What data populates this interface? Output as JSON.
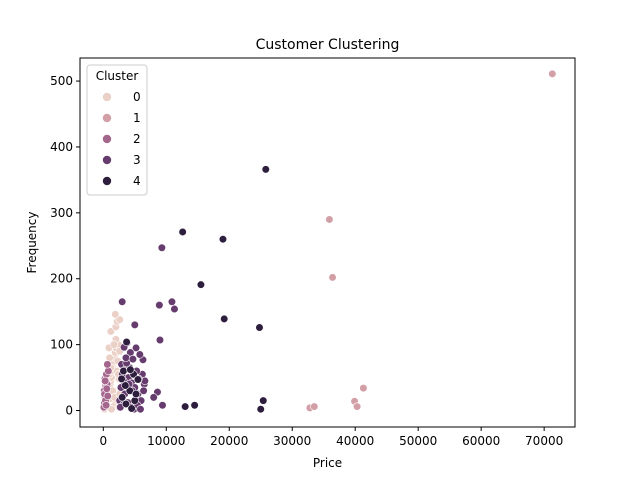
{
  "chart_data": {
    "type": "scatter",
    "title": "Customer Clustering",
    "xlabel": "Price",
    "ylabel": "Frequency",
    "xlim": [
      -3700,
      74900
    ],
    "ylim": [
      -25,
      535
    ],
    "xticks": [
      0,
      10000,
      20000,
      30000,
      40000,
      50000,
      60000,
      70000
    ],
    "yticks": [
      0,
      100,
      200,
      300,
      400,
      500
    ],
    "legend": {
      "title": "Cluster",
      "placement": "top-left"
    },
    "series": [
      {
        "name": "0",
        "color": "#ebd0c7",
        "points": [
          [
            200,
            2
          ],
          [
            300,
            5
          ],
          [
            150,
            8
          ],
          [
            400,
            12
          ],
          [
            600,
            15
          ],
          [
            800,
            20
          ],
          [
            500,
            25
          ],
          [
            900,
            30
          ],
          [
            700,
            35
          ],
          [
            1100,
            40
          ],
          [
            1200,
            45
          ],
          [
            1300,
            50
          ],
          [
            1000,
            55
          ],
          [
            1500,
            60
          ],
          [
            1600,
            65
          ],
          [
            1400,
            70
          ],
          [
            1700,
            75
          ],
          [
            1800,
            80
          ],
          [
            1900,
            88
          ],
          [
            2000,
            95
          ],
          [
            900,
            95
          ],
          [
            1200,
            120
          ],
          [
            2000,
            127
          ],
          [
            2200,
            135
          ],
          [
            2600,
            138
          ],
          [
            1900,
            146
          ],
          [
            2400,
            100
          ],
          [
            2600,
            90
          ],
          [
            2300,
            75
          ],
          [
            2100,
            60
          ],
          [
            2500,
            48
          ],
          [
            2700,
            35
          ],
          [
            2200,
            22
          ],
          [
            1900,
            12
          ],
          [
            1600,
            6
          ],
          [
            1300,
            2
          ],
          [
            1100,
            18
          ],
          [
            800,
            28
          ],
          [
            600,
            42
          ],
          [
            300,
            10
          ],
          [
            1500,
            30
          ],
          [
            1800,
            20
          ],
          [
            2600,
            25
          ],
          [
            2800,
            15
          ],
          [
            2500,
            5
          ],
          [
            1200,
            65
          ],
          [
            1000,
            80
          ],
          [
            2000,
            108
          ],
          [
            1700,
            100
          ],
          [
            2400,
            55
          ]
        ]
      },
      {
        "name": "1",
        "color": "#d29fa7",
        "points": [
          [
            71300,
            511
          ],
          [
            35900,
            290
          ],
          [
            36400,
            202
          ],
          [
            41300,
            34
          ],
          [
            39900,
            14
          ],
          [
            40300,
            6
          ],
          [
            32800,
            4
          ],
          [
            33500,
            6
          ]
        ]
      },
      {
        "name": "2",
        "color": "#a5668e",
        "points": [
          [
            100,
            5
          ],
          [
            200,
            12
          ],
          [
            300,
            20
          ],
          [
            150,
            30
          ],
          [
            400,
            38
          ],
          [
            250,
            48
          ],
          [
            500,
            55
          ],
          [
            600,
            40
          ],
          [
            200,
            25
          ],
          [
            350,
            15
          ],
          [
            450,
            8
          ],
          [
            700,
            22
          ],
          [
            550,
            33
          ],
          [
            300,
            45
          ],
          [
            800,
            60
          ],
          [
            650,
            70
          ]
        ]
      },
      {
        "name": "3",
        "color": "#663c6f",
        "points": [
          [
            9300,
            247
          ],
          [
            10900,
            165
          ],
          [
            11300,
            154
          ],
          [
            8900,
            160
          ],
          [
            3000,
            165
          ],
          [
            5000,
            130
          ],
          [
            9000,
            107
          ],
          [
            8600,
            28
          ],
          [
            8000,
            20
          ],
          [
            9400,
            8
          ],
          [
            6500,
            40
          ],
          [
            6200,
            55
          ],
          [
            6300,
            77
          ],
          [
            5800,
            85
          ],
          [
            5200,
            95
          ],
          [
            4300,
            88
          ],
          [
            3800,
            103
          ],
          [
            3300,
            96
          ],
          [
            2900,
            70
          ],
          [
            3500,
            62
          ],
          [
            4000,
            50
          ],
          [
            4500,
            42
          ],
          [
            5000,
            35
          ],
          [
            5500,
            25
          ],
          [
            6000,
            15
          ],
          [
            6600,
            45
          ],
          [
            5600,
            48
          ],
          [
            4800,
            58
          ],
          [
            4200,
            65
          ],
          [
            3700,
            72
          ],
          [
            3200,
            45
          ],
          [
            2800,
            35
          ],
          [
            3400,
            25
          ],
          [
            3900,
            12
          ],
          [
            4400,
            5
          ],
          [
            4900,
            2
          ],
          [
            5400,
            8
          ],
          [
            5900,
            2
          ],
          [
            2600,
            15
          ],
          [
            3000,
            55
          ],
          [
            3600,
            80
          ],
          [
            4100,
            40
          ],
          [
            4600,
            30
          ],
          [
            5300,
            60
          ],
          [
            4700,
            78
          ],
          [
            6400,
            30
          ],
          [
            3300,
            10
          ],
          [
            2700,
            5
          ]
        ]
      },
      {
        "name": "4",
        "color": "#2d1e3e",
        "points": [
          [
            25800,
            366
          ],
          [
            12600,
            271
          ],
          [
            19000,
            260
          ],
          [
            15500,
            191
          ],
          [
            19200,
            139
          ],
          [
            24800,
            126
          ],
          [
            25400,
            15
          ],
          [
            25000,
            2
          ],
          [
            14500,
            8
          ],
          [
            13000,
            6
          ],
          [
            3700,
            104
          ],
          [
            3200,
            60
          ],
          [
            4800,
            55
          ],
          [
            5500,
            47
          ],
          [
            4200,
            30
          ],
          [
            3000,
            20
          ],
          [
            3600,
            10
          ],
          [
            4500,
            3
          ],
          [
            5000,
            15
          ],
          [
            3500,
            38
          ],
          [
            2900,
            48
          ],
          [
            4300,
            62
          ],
          [
            5200,
            25
          ]
        ]
      }
    ]
  }
}
